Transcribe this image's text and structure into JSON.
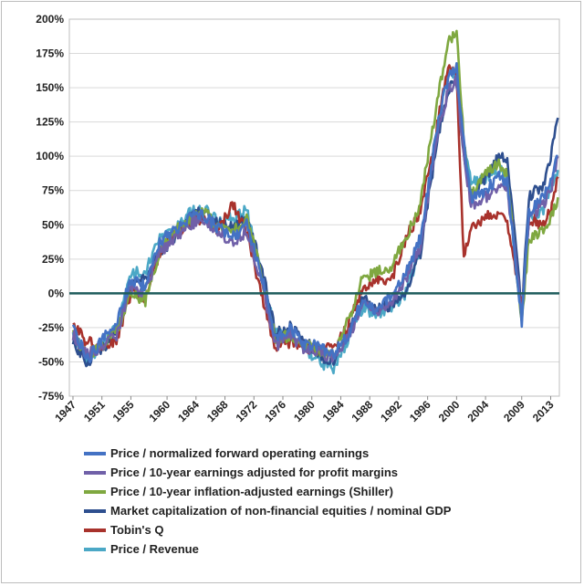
{
  "chart_data": {
    "type": "line",
    "title": "",
    "xlabel": "",
    "ylabel": "",
    "ylim": [
      -75,
      200
    ],
    "y_ticks": [
      "200%",
      "175%",
      "150%",
      "125%",
      "100%",
      "75%",
      "50%",
      "25%",
      "0%",
      "-25%",
      "-50%",
      "-75%"
    ],
    "y_tick_values": [
      200,
      175,
      150,
      125,
      100,
      75,
      50,
      25,
      0,
      -25,
      -50,
      -75
    ],
    "x_ticks": [
      "1947",
      "1951",
      "1955",
      "1960",
      "1964",
      "1968",
      "1972",
      "1976",
      "1980",
      "1984",
      "1988",
      "1992",
      "1996",
      "2000",
      "2004",
      "2009",
      "2013"
    ],
    "x_tick_values": [
      1947,
      1951,
      1955,
      1960,
      1964,
      1968,
      1972,
      1976,
      1980,
      1984,
      1988,
      1992,
      1996,
      2000,
      2004,
      2009,
      2013
    ],
    "xlim": [
      1946.5,
      2014.2
    ],
    "zero_line": true,
    "legend_position": "bottom",
    "colors": {
      "fwd": "#4472c4",
      "margins": "#7060a8",
      "shiller": "#7fa840",
      "mktcap": "#2e4f8f",
      "tobin": "#a8322c",
      "revenue": "#4ba8c6",
      "zero": "#1e5c5c"
    },
    "x": [
      1947,
      1949,
      1951,
      1953,
      1955,
      1957,
      1959,
      1961,
      1963,
      1965,
      1967,
      1969,
      1971,
      1973,
      1975,
      1977,
      1979,
      1981,
      1983,
      1985,
      1987,
      1989,
      1991,
      1993,
      1995,
      1997,
      1998,
      1999,
      2000,
      2001,
      2002,
      2004,
      2006,
      2007,
      2009,
      2010,
      2012,
      2013,
      2014
    ],
    "series": [
      {
        "name": "Price / normalized forward operating earnings",
        "key": "fwd",
        "values": [
          -25,
          -48,
          -35,
          -22,
          10,
          5,
          38,
          45,
          55,
          58,
          48,
          40,
          50,
          15,
          -35,
          -25,
          -38,
          -38,
          -45,
          -30,
          -5,
          -15,
          0,
          15,
          40,
          110,
          140,
          160,
          165,
          110,
          70,
          75,
          85,
          80,
          -20,
          60,
          70,
          80,
          100
        ]
      },
      {
        "name": "Price / 10-year earnings adjusted for profit margins",
        "key": "margins",
        "values": [
          -30,
          -45,
          -38,
          -30,
          5,
          0,
          30,
          40,
          50,
          55,
          45,
          38,
          45,
          10,
          -38,
          -30,
          -40,
          -42,
          -48,
          -32,
          -8,
          -15,
          -5,
          10,
          35,
          105,
          130,
          150,
          155,
          100,
          65,
          70,
          80,
          78,
          -15,
          55,
          65,
          75,
          100
        ]
      },
      {
        "name": "Price / 10-year inflation-adjusted earnings (Shiller)",
        "key": "shiller",
        "values": [
          -30,
          -45,
          -40,
          -28,
          0,
          -5,
          32,
          45,
          52,
          60,
          50,
          45,
          55,
          15,
          -35,
          -30,
          -38,
          -42,
          -45,
          -20,
          10,
          15,
          20,
          40,
          65,
          130,
          160,
          185,
          190,
          110,
          70,
          90,
          95,
          85,
          -20,
          40,
          45,
          55,
          70
        ]
      },
      {
        "name": "Market capitalization of non-financial equities / nominal GDP",
        "key": "mktcap",
        "values": [
          -35,
          -50,
          -40,
          -30,
          5,
          10,
          30,
          40,
          55,
          60,
          50,
          50,
          55,
          20,
          -30,
          -25,
          -35,
          -45,
          -50,
          -30,
          -5,
          -10,
          -10,
          0,
          30,
          100,
          130,
          150,
          155,
          100,
          70,
          85,
          100,
          100,
          -15,
          70,
          80,
          100,
          128
        ]
      },
      {
        "name": "Tobin's Q",
        "key": "tobin",
        "values": [
          -25,
          -35,
          -40,
          -35,
          0,
          -5,
          30,
          45,
          50,
          55,
          45,
          65,
          45,
          0,
          -40,
          -35,
          -38,
          -42,
          -40,
          -25,
          5,
          10,
          10,
          40,
          60,
          110,
          145,
          165,
          160,
          25,
          50,
          55,
          60,
          50,
          -10,
          55,
          50,
          60,
          85
        ]
      },
      {
        "name": "Price / Revenue",
        "key": "revenue",
        "values": [
          -30,
          -48,
          -38,
          -25,
          15,
          15,
          40,
          45,
          58,
          62,
          52,
          55,
          60,
          15,
          -30,
          -30,
          -40,
          -50,
          -55,
          -35,
          -10,
          -15,
          -10,
          0,
          35,
          110,
          140,
          160,
          160,
          110,
          80,
          85,
          90,
          80,
          -15,
          55,
          60,
          75,
          90
        ]
      }
    ]
  }
}
